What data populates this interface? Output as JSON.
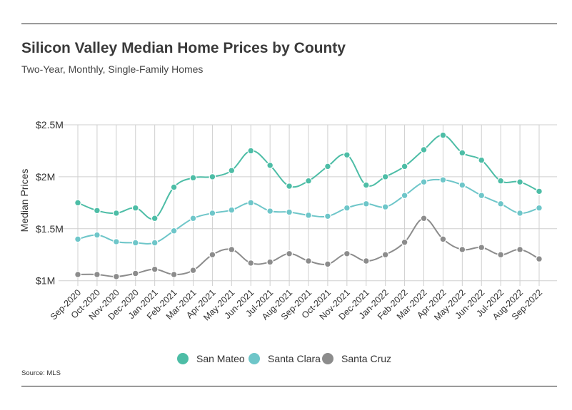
{
  "header": {
    "title": "Silicon Valley Median Home Prices by County",
    "subtitle": "Two-Year, Monthly, Single-Family Homes"
  },
  "footer": {
    "source": "Source:  MLS"
  },
  "colors": {
    "san_mateo": "#4dbda6",
    "santa_clara": "#6ec6c9",
    "santa_cruz": "#8c8c8c",
    "grid": "#cfcfcf"
  },
  "chart_data": {
    "type": "line",
    "title": "Silicon Valley Median Home Prices by County",
    "subtitle": "Two-Year, Monthly, Single-Family Homes",
    "xlabel": "",
    "ylabel": "Median Prices",
    "ylim": [
      950000,
      2500000
    ],
    "y_ticks": [
      {
        "value": 1000000,
        "label": "$1M"
      },
      {
        "value": 1500000,
        "label": "$1.5M"
      },
      {
        "value": 2000000,
        "label": "$2M"
      },
      {
        "value": 2500000,
        "label": "$2.5M"
      }
    ],
    "grid": true,
    "legend_position": "bottom",
    "categories": [
      "Sep-2020",
      "Oct-2020",
      "Nov-2020",
      "Dec-2020",
      "Jan-2021",
      "Feb-2021",
      "Mar-2021",
      "Apr-2021",
      "May-2021",
      "Jun-2021",
      "Jul-2021",
      "Aug-2021",
      "Sep-2021",
      "Oct-2021",
      "Nov-2021",
      "Dec-2021",
      "Jan-2022",
      "Feb-2022",
      "Mar-2022",
      "Apr-2022",
      "May-2022",
      "Jun-2022",
      "Jul-2022",
      "Aug-2022",
      "Sep-2022"
    ],
    "series": [
      {
        "name": "San Mateo",
        "color": "#4dbda6",
        "values": [
          1750000,
          1675000,
          1650000,
          1700000,
          1600000,
          1900000,
          1990000,
          2000000,
          2060000,
          2250000,
          2110000,
          1910000,
          1960000,
          2100000,
          2210000,
          1920000,
          2000000,
          2100000,
          2260000,
          2400000,
          2230000,
          2160000,
          1960000,
          1950000,
          1860000
        ]
      },
      {
        "name": "Santa Clara",
        "color": "#6ec6c9",
        "values": [
          1400000,
          1440000,
          1375000,
          1365000,
          1365000,
          1480000,
          1600000,
          1650000,
          1680000,
          1750000,
          1670000,
          1660000,
          1630000,
          1620000,
          1700000,
          1740000,
          1710000,
          1820000,
          1950000,
          1970000,
          1920000,
          1820000,
          1740000,
          1650000,
          1700000
        ]
      },
      {
        "name": "Santa Cruz",
        "color": "#8c8c8c",
        "values": [
          1060000,
          1060000,
          1040000,
          1070000,
          1110000,
          1060000,
          1100000,
          1250000,
          1300000,
          1170000,
          1180000,
          1260000,
          1190000,
          1160000,
          1260000,
          1190000,
          1250000,
          1370000,
          1600000,
          1400000,
          1300000,
          1320000,
          1250000,
          1300000,
          1210000
        ]
      }
    ]
  }
}
